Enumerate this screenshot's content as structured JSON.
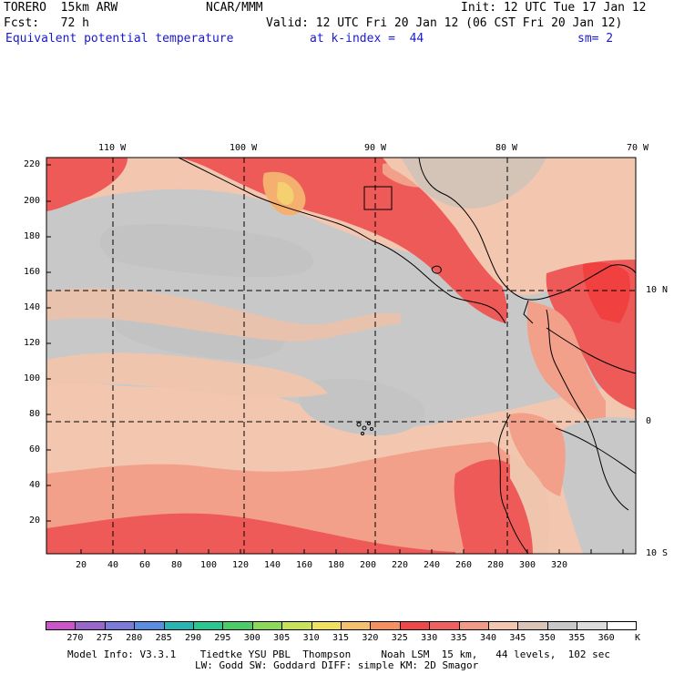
{
  "header": {
    "model": "TORERO  15km ARW",
    "org": "NCAR/MMM",
    "init": "Init: 12 UTC Tue 17 Jan 12",
    "fcst": "Fcst:   72 h",
    "valid": "Valid: 12 UTC Fri 20 Jan 12 (06 CST Fri 20 Jan 12)",
    "field": "Equivalent potential temperature",
    "level": "at k-index =  44",
    "smooth": "sm= 2"
  },
  "axes": {
    "top_lon_labels": [
      "110 W",
      "100 W",
      "90 W",
      "80 W",
      "70 W"
    ],
    "right_lat_labels": [
      "10 N",
      "0",
      "10 S"
    ],
    "left_y_ticks": [
      "220",
      "200",
      "180",
      "160",
      "140",
      "120",
      "100",
      "80",
      "60",
      "40",
      "20"
    ],
    "bottom_x_ticks": [
      "20",
      "40",
      "60",
      "80",
      "100",
      "120",
      "140",
      "160",
      "180",
      "200",
      "220",
      "240",
      "260",
      "280",
      "300",
      "320"
    ]
  },
  "colorbar": {
    "unit": "K",
    "labels": [
      "270",
      "275",
      "280",
      "285",
      "290",
      "295",
      "300",
      "305",
      "310",
      "315",
      "320",
      "325",
      "330",
      "335",
      "340",
      "345",
      "350",
      "355",
      "360"
    ],
    "colors": [
      "#cc55cc",
      "#9966cc",
      "#7b7bd9",
      "#5a8fe0",
      "#2ab5b5",
      "#2ac890",
      "#4ccc66",
      "#8cd95a",
      "#c8e15a",
      "#f0e060",
      "#f5c070",
      "#f59060",
      "#f04848",
      "#f06060",
      "#f29a88",
      "#f3c6b0",
      "#d9c4b8",
      "#c8c8c8",
      "#dcdcdc",
      "#ffffff"
    ]
  },
  "footer": {
    "line1": "Model Info: V3.3.1    Tiedtke YSU PBL  Thompson     Noah LSM  15 km,   44 levels,  102 sec",
    "line2": "LW: Godd SW: Goddard DIFF: simple KM: 2D Smagor"
  }
}
